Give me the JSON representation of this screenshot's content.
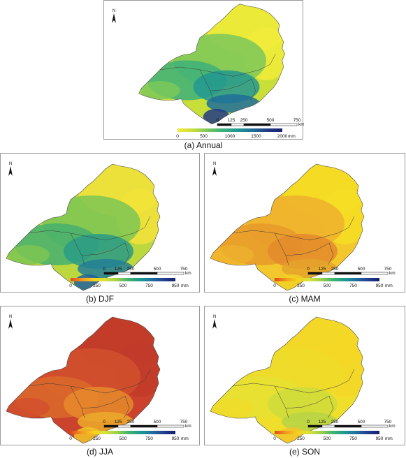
{
  "north_label": "N",
  "scale_bar": {
    "ticks": [
      "0",
      "125",
      "250",
      "500",
      "750"
    ],
    "unit": "km"
  },
  "colorbar": {
    "unit": "mm",
    "colors": [
      "#e04a1c",
      "#f39a1e",
      "#f7d21d",
      "#d7e239",
      "#9cd04a",
      "#3fb46c",
      "#1d9a8f",
      "#1f6fa1",
      "#243f8e",
      "#14206d"
    ]
  },
  "panels": [
    {
      "id": "annual",
      "caption": "(a) Annual",
      "ticks": [
        "0",
        "500",
        "1000",
        "1500",
        "2000"
      ],
      "palette": [
        "#f1ec3a",
        "#c9df39",
        "#7dc85a",
        "#3db17a",
        "#239891",
        "#1e6f9a",
        "#223a85"
      ],
      "fill_level": 0.55
    },
    {
      "id": "djf",
      "caption": "(b) DJF",
      "ticks": [
        "0",
        "250",
        "500",
        "750",
        "950"
      ],
      "palette": [
        "#f3e33a",
        "#bcd83f",
        "#7cc553",
        "#45b06f",
        "#2a9b86",
        "#237f98",
        "#22629a"
      ],
      "fill_level": 0.6
    },
    {
      "id": "mam",
      "caption": "(c) MAM",
      "ticks": [
        "0",
        "250",
        "500",
        "750",
        "950"
      ],
      "palette": [
        "#f6de24",
        "#f3c82c",
        "#eeb02e",
        "#e89a2d",
        "#e38a2b",
        "#e4a32c",
        "#f1d126"
      ],
      "fill_level": 0.3
    },
    {
      "id": "jja",
      "caption": "(d) JJA",
      "ticks": [
        "0",
        "250",
        "500",
        "750",
        "950"
      ],
      "palette": [
        "#c23b2a",
        "#cb432c",
        "#d2502d",
        "#dc6a2c",
        "#e6892b",
        "#ecaa2c",
        "#f1c428"
      ],
      "fill_level": 0.05
    },
    {
      "id": "son",
      "caption": "(e) SON",
      "ticks": [
        "0",
        "250",
        "500",
        "750",
        "950"
      ],
      "palette": [
        "#f4d727",
        "#f0df2a",
        "#eedc2a",
        "#e7e232",
        "#cfdc3b",
        "#b6d445",
        "#f2c42c"
      ],
      "fill_level": 0.25
    }
  ]
}
